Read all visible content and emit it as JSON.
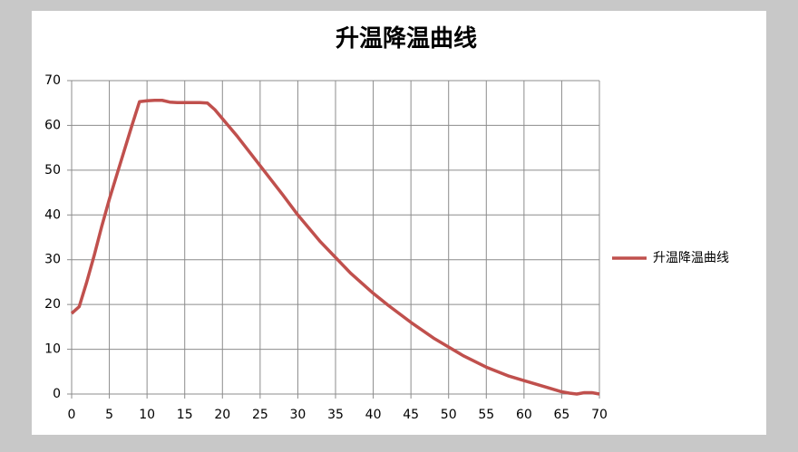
{
  "chart_data": {
    "type": "line",
    "title": "升温降温曲线",
    "x": [
      0,
      1,
      2,
      3,
      4,
      5,
      6,
      7,
      8,
      9,
      10,
      11,
      12,
      13,
      14,
      15,
      16,
      17,
      18,
      19,
      20,
      22,
      25,
      28,
      30,
      33,
      35,
      37,
      40,
      42,
      45,
      48,
      50,
      52,
      55,
      58,
      60,
      63,
      65,
      66,
      67,
      68,
      69,
      70
    ],
    "series": [
      {
        "name": "升温降温曲线",
        "color": "#c0504d",
        "values": [
          18,
          19.5,
          25,
          31,
          37.5,
          43.5,
          49,
          54.5,
          60,
          65.3,
          65.5,
          65.6,
          65.6,
          65.2,
          65.1,
          65.1,
          65.1,
          65.1,
          65,
          63.5,
          61.5,
          57.5,
          51,
          44.5,
          40,
          34,
          30.5,
          27,
          22.5,
          19.8,
          16,
          12.5,
          10.5,
          8.5,
          6,
          4,
          3,
          1.5,
          0.5,
          0.2,
          0,
          0.3,
          0.3,
          0
        ]
      }
    ],
    "xlim": [
      0,
      70
    ],
    "xticks": [
      0,
      5,
      10,
      15,
      20,
      25,
      30,
      35,
      40,
      45,
      50,
      55,
      60,
      65,
      70
    ],
    "ylim": [
      0,
      70
    ],
    "yticks": [
      0,
      10,
      20,
      30,
      40,
      50,
      60,
      70
    ],
    "grid": true,
    "legend": "right"
  }
}
